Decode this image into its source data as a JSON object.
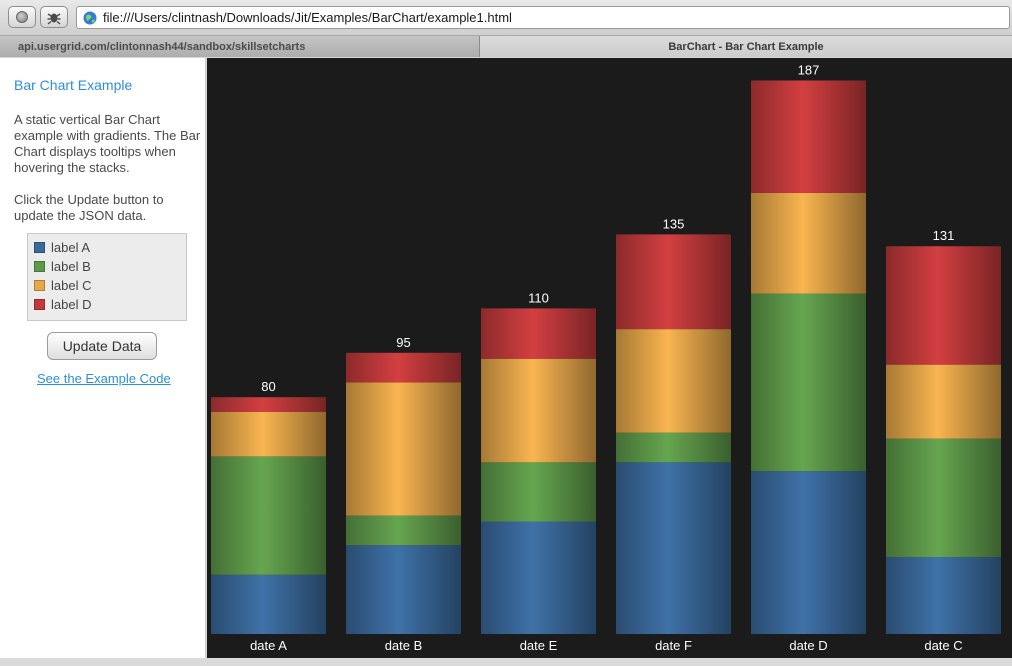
{
  "browser": {
    "url": "file:///Users/clintnash/Downloads/Jit/Examples/BarChart/example1.html",
    "tabs": [
      {
        "label": "api.usergrid.com/clintonnash44/sandbox/skillsetcharts"
      },
      {
        "label": "BarChart - Bar Chart Example"
      }
    ]
  },
  "sidebar": {
    "title": "Bar Chart Example",
    "description": "A static vertical Bar Chart example with gradients. The Bar Chart displays tooltips when hovering the stacks.",
    "instructions": "Click the Update button to update the JSON data.",
    "legend": [
      {
        "label": "label A",
        "color": "#3a6a9c"
      },
      {
        "label": "label B",
        "color": "#5e9a4a"
      },
      {
        "label": "label C",
        "color": "#e7a84a"
      },
      {
        "label": "label D",
        "color": "#c33a3c"
      }
    ],
    "update_button": "Update Data",
    "example_link": "See the Example Code"
  },
  "chart_data": {
    "type": "bar",
    "stacked": true,
    "categories": [
      "date A",
      "date B",
      "date E",
      "date F",
      "date D",
      "date C"
    ],
    "totals": [
      "80",
      "95",
      "110",
      "135",
      "187",
      "131"
    ],
    "series": [
      {
        "name": "label A",
        "color": "#3a6a9c",
        "values": [
          20,
          30,
          38,
          58,
          55,
          26
        ]
      },
      {
        "name": "label B",
        "color": "#5e9a4a",
        "values": [
          40,
          10,
          20,
          10,
          60,
          40
        ]
      },
      {
        "name": "label C",
        "color": "#e7a84a",
        "values": [
          15,
          45,
          35,
          35,
          34,
          25
        ]
      },
      {
        "name": "label D",
        "color": "#c33a3c",
        "values": [
          5,
          10,
          17,
          32,
          38,
          40
        ]
      }
    ]
  }
}
